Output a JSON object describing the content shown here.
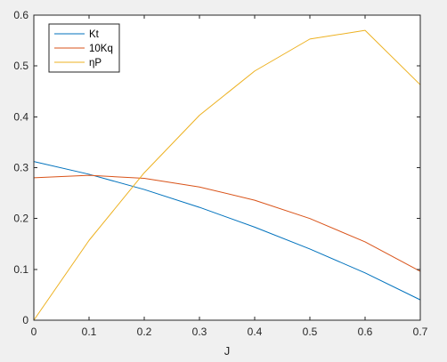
{
  "chart_data": {
    "type": "line",
    "title": "",
    "xlabel": "J",
    "ylabel": "",
    "xlim": [
      0,
      0.7
    ],
    "ylim": [
      0,
      0.6
    ],
    "xticks": [
      0,
      0.1,
      0.2,
      0.3,
      0.4,
      0.5,
      0.6,
      0.7
    ],
    "xtick_labels": [
      "0",
      "0.1",
      "0.2",
      "0.3",
      "0.4",
      "0.5",
      "0.6",
      "0.7"
    ],
    "yticks": [
      0,
      0.1,
      0.2,
      0.3,
      0.4,
      0.5,
      0.6
    ],
    "ytick_labels": [
      "0",
      "0.1",
      "0.2",
      "0.3",
      "0.4",
      "0.5",
      "0.6"
    ],
    "grid": false,
    "legend_position": "top-left",
    "x": [
      0,
      0.1,
      0.2,
      0.3,
      0.4,
      0.5,
      0.6,
      0.7
    ],
    "series": [
      {
        "name": "Kt",
        "color": "#0072BD",
        "values": [
          0.312,
          0.287,
          0.257,
          0.222,
          0.183,
          0.14,
          0.093,
          0.04
        ]
      },
      {
        "name": "10Kq",
        "color": "#D95319",
        "values": [
          0.28,
          0.285,
          0.279,
          0.262,
          0.236,
          0.2,
          0.154,
          0.096
        ]
      },
      {
        "name": "ηP",
        "color": "#EDB120",
        "values": [
          0.0,
          0.157,
          0.29,
          0.403,
          0.49,
          0.553,
          0.57,
          0.463
        ]
      }
    ]
  }
}
